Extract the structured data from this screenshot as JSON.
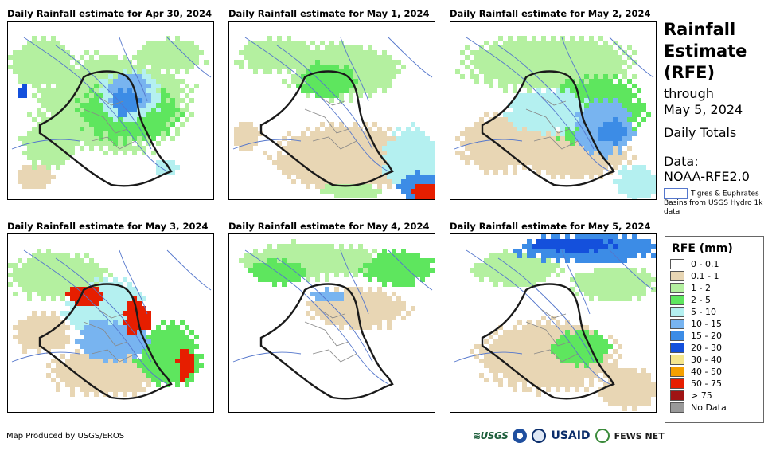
{
  "panels": [
    {
      "title": "Daily Rainfall estimate for Apr 30, 2024"
    },
    {
      "title": "Daily Rainfall estimate for May 1, 2024"
    },
    {
      "title": "Daily Rainfall estimate for May 2, 2024"
    },
    {
      "title": "Daily Rainfall estimate for May 3, 2024"
    },
    {
      "title": "Daily Rainfall estimate for May 4, 2024"
    },
    {
      "title": "Daily Rainfall estimate for May 5, 2024"
    }
  ],
  "sidebar": {
    "title_line1": "Rainfall",
    "title_line2": "Estimate",
    "title_line3": "(RFE)",
    "through_label": "through",
    "through_date": "May 5, 2024",
    "totals_label": "Daily Totals",
    "data_label": "Data:",
    "data_source": "NOAA-RFE2.0",
    "basin_note": "Tigres & Euphrates Basins from USGS Hydro 1k data"
  },
  "legend": {
    "title": "RFE (mm)",
    "items": [
      {
        "label": "0 - 0.1",
        "color": "#ffffff"
      },
      {
        "label": "0.1 - 1",
        "color": "#e8d6b4"
      },
      {
        "label": "1 - 2",
        "color": "#b4f0a0"
      },
      {
        "label": "2 - 5",
        "color": "#5ee65e"
      },
      {
        "label": "5 - 10",
        "color": "#b4f0f0"
      },
      {
        "label": "10 - 15",
        "color": "#78b4f0"
      },
      {
        "label": "15 - 20",
        "color": "#3c8ce6"
      },
      {
        "label": "20 - 30",
        "color": "#1450dc"
      },
      {
        "label": "30 - 40",
        "color": "#f5e68c"
      },
      {
        "label": "40 - 50",
        "color": "#f5a000"
      },
      {
        "label": "50 - 75",
        "color": "#e61e00"
      },
      {
        "label": "> 75",
        "color": "#a01414"
      },
      {
        "label": "No Data",
        "color": "#999999"
      }
    ]
  },
  "footer": {
    "credit": "Map Produced by USGS/EROS",
    "logo_usgs": "≋USGS",
    "logo_usaid": "USAID",
    "logo_fews": "FEWS NET"
  }
}
